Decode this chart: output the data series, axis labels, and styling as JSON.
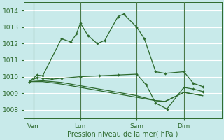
{
  "xlabel": "Pression niveau de la mer( hPa )",
  "bg_color": "#c8eaea",
  "grid_major_color": "#ffffff",
  "grid_minor_color": "#e8c8c8",
  "line_color": "#2d6a2d",
  "vline_color": "#4a7a4a",
  "ylim": [
    1007.5,
    1014.5
  ],
  "xlim": [
    0,
    10.5
  ],
  "xtick_labels": [
    "Ven",
    "Lun",
    "Sam",
    "Dim"
  ],
  "xtick_positions": [
    0.5,
    3.0,
    6.0,
    8.5
  ],
  "ytick_labels": [
    "1008",
    "1009",
    "1010",
    "1011",
    "1012",
    "1013",
    "1014"
  ],
  "ytick_values": [
    1008,
    1009,
    1010,
    1011,
    1012,
    1013,
    1014
  ],
  "vlines": [
    0.5,
    3.0,
    6.0,
    8.5
  ],
  "s1_x": [
    0.3,
    0.7,
    1.0,
    2.0,
    2.5,
    2.8,
    3.0,
    3.4,
    3.9,
    4.3,
    5.0,
    5.3,
    6.0,
    6.4,
    7.0,
    7.5,
    8.5,
    9.0,
    9.5
  ],
  "s1_y": [
    1009.7,
    1010.1,
    1010.05,
    1012.3,
    1012.1,
    1012.6,
    1013.25,
    1012.5,
    1012.0,
    1012.2,
    1013.65,
    1013.8,
    1013.0,
    1012.3,
    1010.3,
    1010.2,
    1010.3,
    1009.6,
    1009.4
  ],
  "s2_x": [
    0.3,
    0.7,
    1.0,
    1.5,
    2.0,
    3.0,
    4.0,
    5.0,
    6.0,
    6.5,
    7.0,
    7.6,
    8.5,
    9.0,
    9.5
  ],
  "s2_y": [
    1009.7,
    1009.95,
    1009.9,
    1009.85,
    1009.9,
    1010.0,
    1010.05,
    1010.1,
    1010.15,
    1009.5,
    1008.4,
    1008.05,
    1009.35,
    1009.25,
    1009.1
  ],
  "s3_x": [
    0.3,
    1.0,
    2.0,
    3.0,
    4.0,
    5.0,
    6.0,
    7.0,
    7.5,
    8.5,
    9.5
  ],
  "s3_y": [
    1009.7,
    1009.7,
    1009.55,
    1009.35,
    1009.15,
    1008.95,
    1008.75,
    1008.55,
    1008.5,
    1009.05,
    1008.85
  ],
  "s4_x": [
    0.3,
    1.0,
    2.0,
    3.0,
    4.0,
    5.0,
    6.0,
    7.0,
    7.5,
    8.5,
    9.5
  ],
  "s4_y": [
    1009.7,
    1009.75,
    1009.65,
    1009.45,
    1009.25,
    1009.05,
    1008.85,
    1008.55,
    1008.5,
    1009.05,
    1008.85
  ]
}
